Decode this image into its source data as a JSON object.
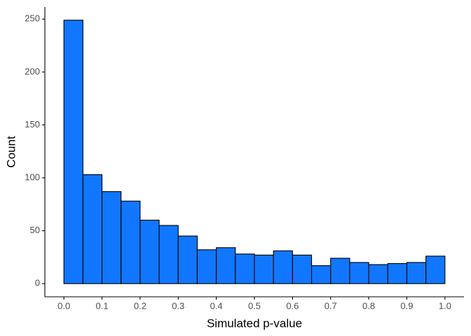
{
  "chart_data": {
    "type": "histogram",
    "xlabel": "Simulated p-value",
    "ylabel": "Count",
    "bins": [
      0,
      0.05,
      0.1,
      0.15,
      0.2,
      0.25,
      0.3,
      0.35,
      0.4,
      0.45,
      0.5,
      0.55,
      0.6,
      0.65,
      0.7,
      0.75,
      0.8,
      0.85,
      0.9,
      0.95,
      1
    ],
    "values": [
      249,
      103,
      87,
      78,
      60,
      55,
      45,
      32,
      34,
      28,
      27,
      31,
      27,
      17,
      24,
      20,
      18,
      19,
      20,
      26
    ],
    "color": "#1177ff",
    "edgecolor": "#000000",
    "xlim": [
      -0.05,
      1.05
    ],
    "ylim": [
      -12.45,
      261.45
    ],
    "xticks": [
      {
        "value": 0,
        "label": "0.0"
      },
      {
        "value": 0.1,
        "label": "0.1"
      },
      {
        "value": 0.2,
        "label": "0.2"
      },
      {
        "value": 0.3,
        "label": "0.3"
      },
      {
        "value": 0.4,
        "label": "0.4"
      },
      {
        "value": 0.5,
        "label": "0.5"
      },
      {
        "value": 0.6,
        "label": "0.6"
      },
      {
        "value": 0.7,
        "label": "0.7"
      },
      {
        "value": 0.8,
        "label": "0.8"
      },
      {
        "value": 0.9,
        "label": "0.9"
      },
      {
        "value": 1,
        "label": "1.0"
      }
    ],
    "yticks": [
      0,
      50,
      100,
      150,
      200,
      250
    ],
    "grid": false
  }
}
